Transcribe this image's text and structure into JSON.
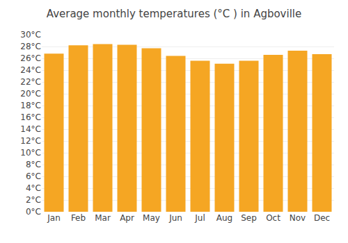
{
  "chart_data": {
    "type": "bar",
    "title": "Average monthly temperatures (°C ) in Agboville",
    "categories": [
      "Jan",
      "Feb",
      "Mar",
      "Apr",
      "May",
      "Jun",
      "Jul",
      "Aug",
      "Sep",
      "Oct",
      "Nov",
      "Dec"
    ],
    "values": [
      26.8,
      28.2,
      28.4,
      28.3,
      27.7,
      26.4,
      25.6,
      25.1,
      25.6,
      26.6,
      27.3,
      26.7
    ],
    "color": "#F5A623",
    "ylim": [
      0,
      30
    ],
    "yticks": [
      {
        "value": 0,
        "label": "0°C"
      },
      {
        "value": 2,
        "label": "2°C"
      },
      {
        "value": 4,
        "label": "4°C"
      },
      {
        "value": 6,
        "label": "6°C"
      },
      {
        "value": 8,
        "label": "8°C"
      },
      {
        "value": 10,
        "label": "10°C"
      },
      {
        "value": 12,
        "label": "12°C"
      },
      {
        "value": 14,
        "label": "14°C"
      },
      {
        "value": 16,
        "label": "16°C"
      },
      {
        "value": 18,
        "label": "18°C"
      },
      {
        "value": 20,
        "label": "20°C"
      },
      {
        "value": 22,
        "label": "22°C"
      },
      {
        "value": 24,
        "label": "24°C"
      },
      {
        "value": 26,
        "label": "26°C"
      },
      {
        "value": 28,
        "label": "28°C"
      },
      {
        "value": 30,
        "label": "30°C"
      }
    ],
    "grid": true
  }
}
